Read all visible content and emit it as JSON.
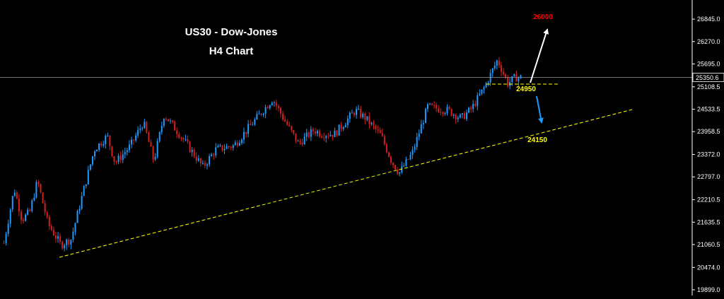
{
  "chart_data": {
    "type": "candlestick",
    "title": "US30 - Dow-Jones",
    "subtitle": "H4 Chart",
    "ylim": [
      19899.0,
      27300.0
    ],
    "y_ticks": [
      "26845.0",
      "26270.0",
      "25695.0",
      "25108.5",
      "24533.5",
      "23958.5",
      "23372.0",
      "22797.0",
      "22210.5",
      "21635.5",
      "21060.5",
      "20474.0",
      "19899.0"
    ],
    "current_price": {
      "label": "25350.6",
      "value": 25350.6
    },
    "price_path": [
      [
        0,
        21100
      ],
      [
        0.02,
        22500
      ],
      [
        0.035,
        21700
      ],
      [
        0.05,
        21900
      ],
      [
        0.065,
        22700
      ],
      [
        0.085,
        21600
      ],
      [
        0.11,
        21050
      ],
      [
        0.13,
        21200
      ],
      [
        0.155,
        22500
      ],
      [
        0.175,
        23500
      ],
      [
        0.2,
        23850
      ],
      [
        0.215,
        23150
      ],
      [
        0.245,
        23600
      ],
      [
        0.27,
        24200
      ],
      [
        0.29,
        23200
      ],
      [
        0.31,
        24400
      ],
      [
        0.345,
        23800
      ],
      [
        0.385,
        23050
      ],
      [
        0.41,
        23500
      ],
      [
        0.445,
        23600
      ],
      [
        0.47,
        24000
      ],
      [
        0.52,
        24800
      ],
      [
        0.545,
        24200
      ],
      [
        0.57,
        23650
      ],
      [
        0.6,
        24000
      ],
      [
        0.615,
        23900
      ],
      [
        0.64,
        23900
      ],
      [
        0.68,
        24500
      ],
      [
        0.7,
        24300
      ],
      [
        0.73,
        23850
      ],
      [
        0.75,
        23200
      ],
      [
        0.765,
        22900
      ],
      [
        0.79,
        23400
      ],
      [
        0.82,
        24600
      ],
      [
        0.86,
        24500
      ],
      [
        0.885,
        24300
      ],
      [
        0.905,
        24550
      ],
      [
        0.93,
        25100
      ],
      [
        0.955,
        25800
      ],
      [
        0.975,
        25200
      ],
      [
        0.99,
        25350
      ],
      [
        1.0,
        25350
      ]
    ],
    "annotations": {
      "target_up": {
        "label": "26000",
        "color": "#ff0000"
      },
      "support": {
        "label": "24950",
        "color": "#ffff00"
      },
      "trendline": {
        "label": "24150",
        "color": "#ffff00"
      }
    },
    "colors": {
      "bull": "#1e9bff",
      "bear": "#d42020",
      "background": "#000000",
      "axis": "#ffffff"
    }
  }
}
